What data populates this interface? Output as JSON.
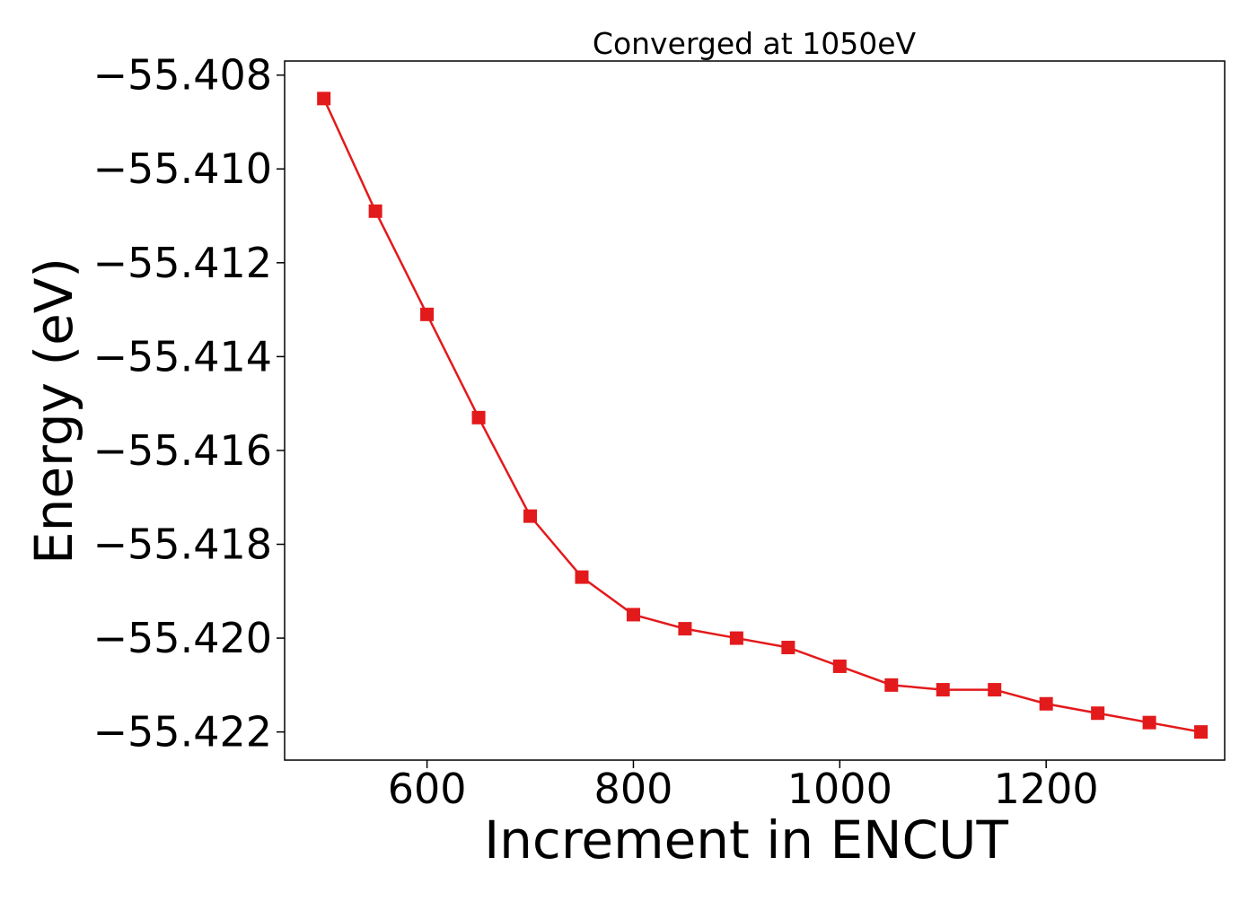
{
  "chart_data": {
    "type": "line",
    "title": "Converged at 1050eV",
    "xlabel": "Increment in ENCUT",
    "ylabel": "Energy (eV)",
    "xlim": [
      462,
      1373
    ],
    "ylim": [
      -55.4226,
      -55.4077
    ],
    "xticks": [
      600,
      800,
      1000,
      1200
    ],
    "yticks": [
      -55.408,
      -55.41,
      -55.412,
      -55.414,
      -55.416,
      -55.418,
      -55.42,
      -55.422
    ],
    "grid": false,
    "legend": "none",
    "series": [
      {
        "color": "#e31a1c",
        "marker": "square",
        "x": [
          500,
          550,
          600,
          650,
          700,
          750,
          800,
          850,
          900,
          950,
          1000,
          1050,
          1100,
          1150,
          1200,
          1250,
          1300,
          1350
        ],
        "y": [
          -55.4085,
          -55.4109,
          -55.4131,
          -55.4153,
          -55.4174,
          -55.4187,
          -55.4195,
          -55.4198,
          -55.42,
          -55.4202,
          -55.4206,
          -55.421,
          -55.4211,
          -55.4211,
          -55.4214,
          -55.4216,
          -55.4218,
          -55.422
        ]
      }
    ]
  }
}
